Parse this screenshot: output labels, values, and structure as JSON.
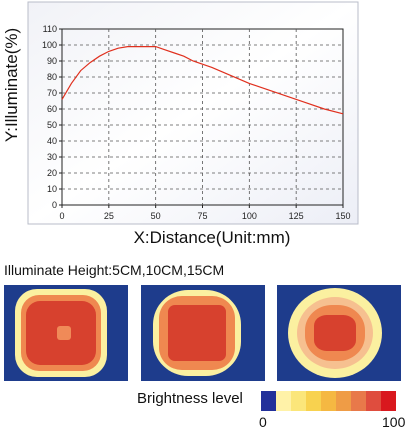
{
  "chart_data": {
    "type": "line",
    "title": "",
    "xlabel": "X:Distance(Unit:mm)",
    "ylabel": "Y:Illuminate(%)",
    "xlim": [
      0,
      150
    ],
    "ylim": [
      0,
      110
    ],
    "x_ticks": [
      "0",
      "25",
      "50",
      "75",
      "100",
      "125",
      "150"
    ],
    "y_ticks": [
      "0",
      "10",
      "20",
      "30",
      "40",
      "50",
      "60",
      "70",
      "80",
      "90",
      "100",
      "110"
    ],
    "grid": true,
    "series": [
      {
        "color": "#e0301e",
        "x": [
          0,
          5,
          10,
          15,
          20,
          25,
          30,
          35,
          40,
          45,
          50,
          55,
          60,
          65,
          70,
          75,
          80,
          90,
          100,
          110,
          120,
          130,
          140,
          150
        ],
        "y": [
          66,
          76,
          84,
          89,
          93,
          96,
          98,
          99,
          99,
          99,
          99,
          97,
          95,
          93,
          90,
          88,
          86,
          81,
          76,
          72,
          68,
          64,
          60,
          57
        ]
      }
    ]
  },
  "heatmap": {
    "caption": "Illuminate Height:5CM,10CM,15CM",
    "legend_label": "Brightness level",
    "scale_min": "0",
    "scale_max": "100",
    "scale_colors": [
      "#22309a",
      "#fff2a8",
      "#fbe67a",
      "#f8d24f",
      "#f5b842",
      "#ef9c46",
      "#e8794a",
      "#df4d3e",
      "#d9181e"
    ],
    "background_color": "#1e3c8c"
  }
}
